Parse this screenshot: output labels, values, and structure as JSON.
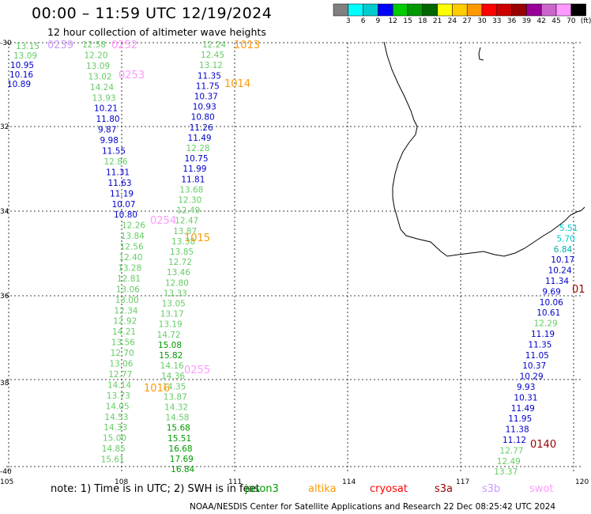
{
  "title": "00:00 – 11:59 UTC 12/19/2024",
  "subtitle": "12 hour collection of altimeter wave heights",
  "colorbar": {
    "colors": [
      "#808080",
      "#00ffff",
      "#00cccc",
      "#0000ff",
      "#00cc00",
      "#009900",
      "#006600",
      "#ffff00",
      "#ffcc00",
      "#ff9900",
      "#ff0000",
      "#cc0000",
      "#990000",
      "#990099",
      "#cc66cc",
      "#ff99ff",
      "#000000"
    ],
    "labels": [
      "3",
      "6",
      "9",
      "12",
      "15",
      "18",
      "21",
      "24",
      "27",
      "30",
      "33",
      "36",
      "39",
      "42",
      "45",
      "70",
      "(ft)"
    ]
  },
  "axes": {
    "lat_labels": [
      "-30",
      "32",
      "34",
      "36",
      "38",
      "-40"
    ],
    "lon_labels": [
      "105",
      "108",
      "111",
      "114",
      "117",
      "120"
    ]
  },
  "note": "note:  1) Time is in UTC; 2) SWH is in feet",
  "satellites": [
    {
      "name": "jason3",
      "color": "#009900"
    },
    {
      "name": "altika",
      "color": "#ff9900"
    },
    {
      "name": "cryosat",
      "color": "#ff0000"
    },
    {
      "name": "s3a",
      "color": "#990000"
    },
    {
      "name": "s3b",
      "color": "#cc99ff"
    },
    {
      "name": "swot",
      "color": "#ff99ff"
    }
  ],
  "footer": "NOAA/NESDIS Center for Satellite Applications and Research    22 Dec 08:25:42 UTC 2024",
  "time_labels": [
    {
      "t": "0239",
      "c": "#cc99ff"
    },
    {
      "t": "0252",
      "c": "#ff99ff"
    },
    {
      "t": "0253",
      "c": "#ff99ff"
    },
    {
      "t": "1013",
      "c": "#ff9900"
    },
    {
      "t": "1014",
      "c": "#ff9900"
    },
    {
      "t": "0254",
      "c": "#ff99ff"
    },
    {
      "t": "1015",
      "c": "#ff9900"
    },
    {
      "t": "0255",
      "c": "#ff99ff"
    },
    {
      "t": "1016",
      "c": "#ff9900"
    },
    {
      "t": "01",
      "c": "#990000"
    },
    {
      "t": "0140",
      "c": "#990000"
    }
  ],
  "track_a": [
    {
      "v": "13.15",
      "c": "#66cc66"
    },
    {
      "v": "13.09",
      "c": "#66cc66"
    },
    {
      "v": "10.95",
      "c": "#0000cc"
    },
    {
      "v": "10.16",
      "c": "#0000cc"
    },
    {
      "v": "10.89",
      "c": "#0000cc"
    }
  ],
  "track_b": [
    {
      "v": "12.58",
      "c": "#66cc66"
    },
    {
      "v": "12.20",
      "c": "#66cc66"
    },
    {
      "v": "13.09",
      "c": "#66cc66"
    },
    {
      "v": "13.02",
      "c": "#66cc66"
    },
    {
      "v": "14.24",
      "c": "#66cc66"
    },
    {
      "v": "13.93",
      "c": "#66cc66"
    },
    {
      "v": "10.21",
      "c": "#0000cc"
    },
    {
      "v": "11.80",
      "c": "#0000cc"
    },
    {
      "v": "9.87",
      "c": "#0000cc"
    },
    {
      "v": "9.98",
      "c": "#0000cc"
    },
    {
      "v": "11.55",
      "c": "#0000cc"
    },
    {
      "v": "12.86",
      "c": "#66cc66"
    },
    {
      "v": "11.31",
      "c": "#0000cc"
    },
    {
      "v": "11.63",
      "c": "#0000cc"
    },
    {
      "v": "11.19",
      "c": "#0000cc"
    },
    {
      "v": "10.07",
      "c": "#0000cc"
    },
    {
      "v": "10.80",
      "c": "#0000cc"
    },
    {
      "v": "12.26",
      "c": "#66cc66"
    },
    {
      "v": "13.84",
      "c": "#66cc66"
    },
    {
      "v": "12.56",
      "c": "#66cc66"
    },
    {
      "v": "12.40",
      "c": "#66cc66"
    },
    {
      "v": "13.28",
      "c": "#66cc66"
    },
    {
      "v": "12.81",
      "c": "#66cc66"
    },
    {
      "v": "13.06",
      "c": "#66cc66"
    },
    {
      "v": "13.00",
      "c": "#66cc66"
    },
    {
      "v": "12.34",
      "c": "#66cc66"
    },
    {
      "v": "12.92",
      "c": "#66cc66"
    },
    {
      "v": "14.21",
      "c": "#66cc66"
    },
    {
      "v": "13.56",
      "c": "#66cc66"
    },
    {
      "v": "12.70",
      "c": "#66cc66"
    },
    {
      "v": "13.06",
      "c": "#66cc66"
    },
    {
      "v": "12.77",
      "c": "#66cc66"
    },
    {
      "v": "14.14",
      "c": "#66cc66"
    },
    {
      "v": "13.73",
      "c": "#66cc66"
    },
    {
      "v": "14.05",
      "c": "#66cc66"
    },
    {
      "v": "14.53",
      "c": "#66cc66"
    },
    {
      "v": "14.33",
      "c": "#66cc66"
    },
    {
      "v": "15.00",
      "c": "#66cc66"
    },
    {
      "v": "14.85",
      "c": "#66cc66"
    },
    {
      "v": "15.61",
      "c": "#66cc66"
    }
  ],
  "track_c": [
    {
      "v": "12.24",
      "c": "#66cc66"
    },
    {
      "v": "12.45",
      "c": "#66cc66"
    },
    {
      "v": "13.12",
      "c": "#66cc66"
    },
    {
      "v": "11.35",
      "c": "#0000cc"
    },
    {
      "v": "11.75",
      "c": "#0000cc"
    },
    {
      "v": "10.37",
      "c": "#0000cc"
    },
    {
      "v": "10.93",
      "c": "#0000cc"
    },
    {
      "v": "10.80",
      "c": "#0000cc"
    },
    {
      "v": "11.26",
      "c": "#0000cc"
    },
    {
      "v": "11.49",
      "c": "#0000cc"
    },
    {
      "v": "12.28",
      "c": "#66cc66"
    },
    {
      "v": "10.75",
      "c": "#0000cc"
    },
    {
      "v": "11.99",
      "c": "#0000cc"
    },
    {
      "v": "11.81",
      "c": "#0000cc"
    },
    {
      "v": "13.68",
      "c": "#66cc66"
    },
    {
      "v": "12.30",
      "c": "#66cc66"
    },
    {
      "v": "12.49",
      "c": "#66cc66"
    },
    {
      "v": "12.47",
      "c": "#66cc66"
    },
    {
      "v": "13.87",
      "c": "#66cc66"
    },
    {
      "v": "13.38",
      "c": "#66cc66"
    },
    {
      "v": "13.85",
      "c": "#66cc66"
    },
    {
      "v": "12.72",
      "c": "#66cc66"
    },
    {
      "v": "13.46",
      "c": "#66cc66"
    },
    {
      "v": "12.80",
      "c": "#66cc66"
    },
    {
      "v": "13.33",
      "c": "#66cc66"
    },
    {
      "v": "13.05",
      "c": "#66cc66"
    },
    {
      "v": "13.17",
      "c": "#66cc66"
    },
    {
      "v": "13.19",
      "c": "#66cc66"
    },
    {
      "v": "14.72",
      "c": "#66cc66"
    },
    {
      "v": "15.08",
      "c": "#009900"
    },
    {
      "v": "15.82",
      "c": "#009900"
    },
    {
      "v": "14.16",
      "c": "#66cc66"
    },
    {
      "v": "14.36",
      "c": "#66cc66"
    },
    {
      "v": "14.35",
      "c": "#66cc66"
    },
    {
      "v": "13.87",
      "c": "#66cc66"
    },
    {
      "v": "14.32",
      "c": "#66cc66"
    },
    {
      "v": "14.58",
      "c": "#66cc66"
    },
    {
      "v": "15.68",
      "c": "#009900"
    },
    {
      "v": "15.51",
      "c": "#009900"
    },
    {
      "v": "16.68",
      "c": "#009900"
    },
    {
      "v": "17.69",
      "c": "#009900"
    },
    {
      "v": "16.84",
      "c": "#009900"
    }
  ],
  "track_d": [
    {
      "v": "5.51",
      "c": "#00cccc"
    },
    {
      "v": "5.70",
      "c": "#00cccc"
    },
    {
      "v": "6.84",
      "c": "#00aaaa"
    },
    {
      "v": "10.17",
      "c": "#0000cc"
    },
    {
      "v": "10.24",
      "c": "#0000cc"
    },
    {
      "v": "11.34",
      "c": "#0000cc"
    },
    {
      "v": "9.69",
      "c": "#0000cc"
    },
    {
      "v": "10.06",
      "c": "#0000cc"
    },
    {
      "v": "10.61",
      "c": "#0000cc"
    },
    {
      "v": "12.29",
      "c": "#66cc66"
    },
    {
      "v": "11.19",
      "c": "#0000cc"
    },
    {
      "v": "11.35",
      "c": "#0000cc"
    },
    {
      "v": "11.05",
      "c": "#0000cc"
    },
    {
      "v": "10.37",
      "c": "#0000cc"
    },
    {
      "v": "10.29",
      "c": "#0000cc"
    },
    {
      "v": "9.93",
      "c": "#0000cc"
    },
    {
      "v": "10.31",
      "c": "#0000cc"
    },
    {
      "v": "11.49",
      "c": "#0000cc"
    },
    {
      "v": "11.95",
      "c": "#0000cc"
    },
    {
      "v": "11.38",
      "c": "#0000cc"
    },
    {
      "v": "11.12",
      "c": "#0000cc"
    },
    {
      "v": "12.77",
      "c": "#66cc66"
    },
    {
      "v": "12.49",
      "c": "#66cc66"
    },
    {
      "v": "13.37",
      "c": "#66cc66"
    }
  ]
}
